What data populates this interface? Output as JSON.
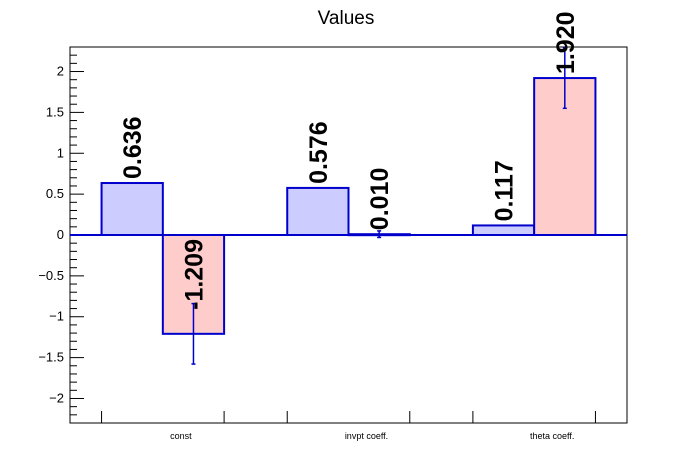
{
  "chart_data": {
    "type": "bar",
    "title": "Values",
    "categories": [
      "const",
      "invpt coeff.",
      "theta coeff."
    ],
    "series": [
      {
        "values": [
          0.636,
          0.576,
          0.117
        ],
        "errors": [
          0.0,
          0.0,
          0.0
        ],
        "color": "#ccccff",
        "labels": [
          "0.636",
          "0.576",
          "0.117"
        ]
      },
      {
        "values": [
          -1.209,
          0.01,
          1.92
        ],
        "errors": [
          0.37,
          0.04,
          0.37
        ],
        "color": "#ffcccc",
        "labels": [
          "-1.209",
          "0.010",
          "1.920"
        ]
      }
    ],
    "ylim": [
      -2.3,
      2.3
    ],
    "yticks": [
      -2,
      -1.5,
      -1,
      -0.5,
      0,
      0.5,
      1,
      1.5,
      2
    ],
    "ytick_labels": [
      "−2",
      "−1.5",
      "−1",
      "−0.5",
      "0",
      "0.5",
      "1",
      "1.5",
      "2"
    ],
    "edge_color": "#0000cc",
    "grid": false,
    "legend": "none"
  }
}
